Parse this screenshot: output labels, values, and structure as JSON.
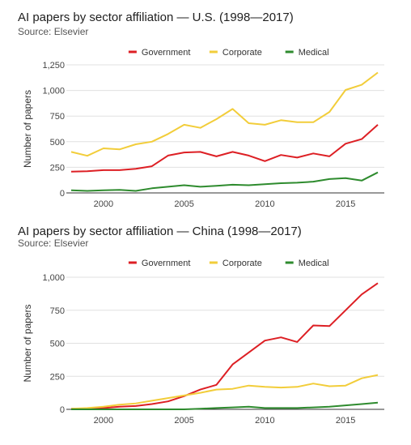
{
  "chart_data": [
    {
      "type": "line",
      "title": "AI papers by sector affiliation — U.S. (1998—2017)",
      "subtitle": "Source: Elsevier",
      "xlabel": "",
      "ylabel": "Number of papers",
      "xlim": [
        1998,
        2017
      ],
      "ylim": [
        0,
        1250
      ],
      "xticks": [
        "2000",
        "2005",
        "2010",
        "2015"
      ],
      "yticks": [
        "0",
        "250",
        "500",
        "750",
        "1,000",
        "1,250"
      ],
      "legend_position": "top",
      "grid": true,
      "x": [
        1998,
        1999,
        2000,
        2001,
        2002,
        2003,
        2004,
        2005,
        2006,
        2007,
        2008,
        2009,
        2010,
        2011,
        2012,
        2013,
        2014,
        2015,
        2016,
        2017
      ],
      "series": [
        {
          "name": "Government",
          "color": "#dd1f24",
          "values": [
            207,
            212,
            222,
            222,
            236,
            260,
            365,
            395,
            400,
            357,
            400,
            365,
            310,
            370,
            345,
            385,
            357,
            480,
            525,
            665
          ]
        },
        {
          "name": "Corporate",
          "color": "#f2cd3a",
          "values": [
            400,
            362,
            435,
            425,
            475,
            500,
            575,
            665,
            635,
            720,
            820,
            680,
            665,
            710,
            690,
            690,
            790,
            1005,
            1055,
            1175
          ]
        },
        {
          "name": "Medical",
          "color": "#2e8b2e",
          "values": [
            25,
            20,
            25,
            30,
            20,
            45,
            60,
            75,
            60,
            70,
            80,
            75,
            85,
            95,
            100,
            110,
            135,
            145,
            120,
            200
          ]
        }
      ]
    },
    {
      "type": "line",
      "title": "AI papers by sector affiliation — China (1998—2017)",
      "subtitle": "Source: Elsevier",
      "xlabel": "",
      "ylabel": "Number of papers",
      "xlim": [
        1998,
        2017
      ],
      "ylim": [
        0,
        1000
      ],
      "xticks": [
        "2000",
        "2005",
        "2010",
        "2015"
      ],
      "yticks": [
        "0",
        "250",
        "500",
        "750",
        "1,000"
      ],
      "legend_position": "top",
      "grid": true,
      "x": [
        1998,
        1999,
        2000,
        2001,
        2002,
        2003,
        2004,
        2005,
        2006,
        2007,
        2008,
        2009,
        2010,
        2011,
        2012,
        2013,
        2014,
        2015,
        2016,
        2017
      ],
      "series": [
        {
          "name": "Government",
          "color": "#dd1f24",
          "values": [
            5,
            5,
            10,
            20,
            25,
            40,
            60,
            100,
            150,
            185,
            340,
            430,
            520,
            545,
            510,
            635,
            630,
            750,
            870,
            955
          ]
        },
        {
          "name": "Corporate",
          "color": "#f2cd3a",
          "values": [
            5,
            10,
            20,
            35,
            45,
            65,
            85,
            105,
            125,
            150,
            155,
            180,
            170,
            165,
            170,
            195,
            175,
            180,
            235,
            260
          ]
        },
        {
          "name": "Medical",
          "color": "#2e8b2e",
          "values": [
            0,
            0,
            0,
            0,
            0,
            0,
            0,
            0,
            5,
            10,
            15,
            20,
            10,
            10,
            10,
            15,
            20,
            30,
            40,
            50
          ]
        }
      ]
    }
  ]
}
